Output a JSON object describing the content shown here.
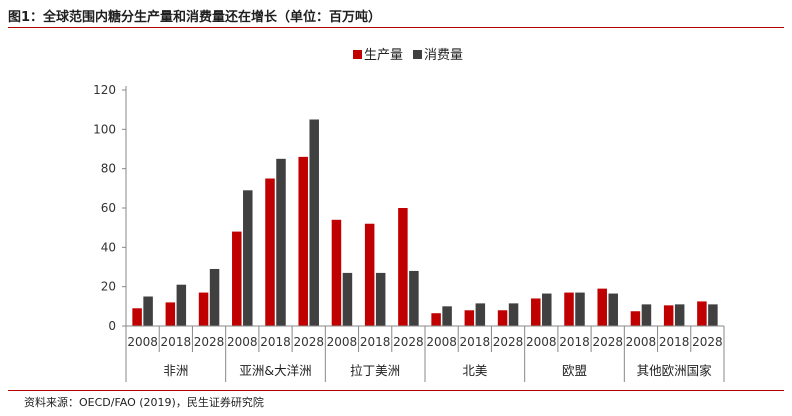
{
  "figure": {
    "title": "图1：全球范围内糖分生产量和消费量还在增长（单位：百万吨）",
    "source": "资料来源：OECD/FAO (2019)，民生证券研究院"
  },
  "colors": {
    "production": "#c00000",
    "consumption": "#404040",
    "rule": "#b30000"
  },
  "chart_data": {
    "type": "bar",
    "title": "",
    "xlabel": "",
    "ylabel": "",
    "ylim": [
      0,
      120
    ],
    "yticks": [
      0,
      20,
      40,
      60,
      80,
      100,
      120
    ],
    "grid": false,
    "legend_position": "top-center",
    "groups": [
      {
        "name": "非洲",
        "years": [
          "2008",
          "2018",
          "2028"
        ]
      },
      {
        "name": "亚洲&大洋洲",
        "years": [
          "2008",
          "2018",
          "2028"
        ]
      },
      {
        "name": "拉丁美洲",
        "years": [
          "2008",
          "2018",
          "2028"
        ]
      },
      {
        "name": "北美",
        "years": [
          "2008",
          "2018",
          "2028"
        ]
      },
      {
        "name": "欧盟",
        "years": [
          "2008",
          "2018",
          "2028"
        ]
      },
      {
        "name": "其他欧洲国家",
        "years": [
          "2008",
          "2018",
          "2028"
        ]
      }
    ],
    "series": [
      {
        "name": "生产量",
        "values": [
          9,
          12,
          17,
          48,
          75,
          86,
          54,
          52,
          60,
          6.5,
          8,
          8,
          14,
          17,
          19,
          7.5,
          10.5,
          12.5
        ]
      },
      {
        "name": "消费量",
        "values": [
          15,
          21,
          29,
          69,
          85,
          105,
          27,
          27,
          28,
          10,
          11.5,
          11.5,
          16.5,
          17,
          16.5,
          11,
          11,
          11
        ]
      }
    ]
  }
}
